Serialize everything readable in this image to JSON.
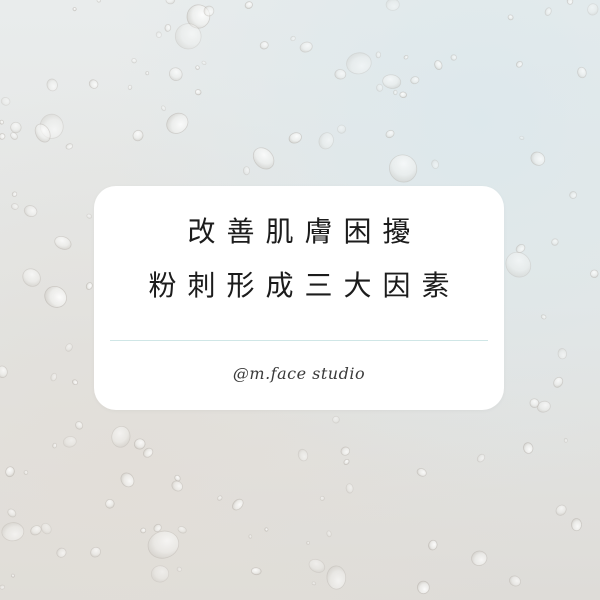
{
  "card": {
    "title_line1": "改善肌膚困擾",
    "title_line2": "粉刺形成三大因素",
    "handle": "@m.face studio"
  },
  "colors": {
    "card_background": "#ffffff",
    "text": "#1c1c1c",
    "divider": "#cfe6e6",
    "backdrop": "#e6e8e7"
  }
}
